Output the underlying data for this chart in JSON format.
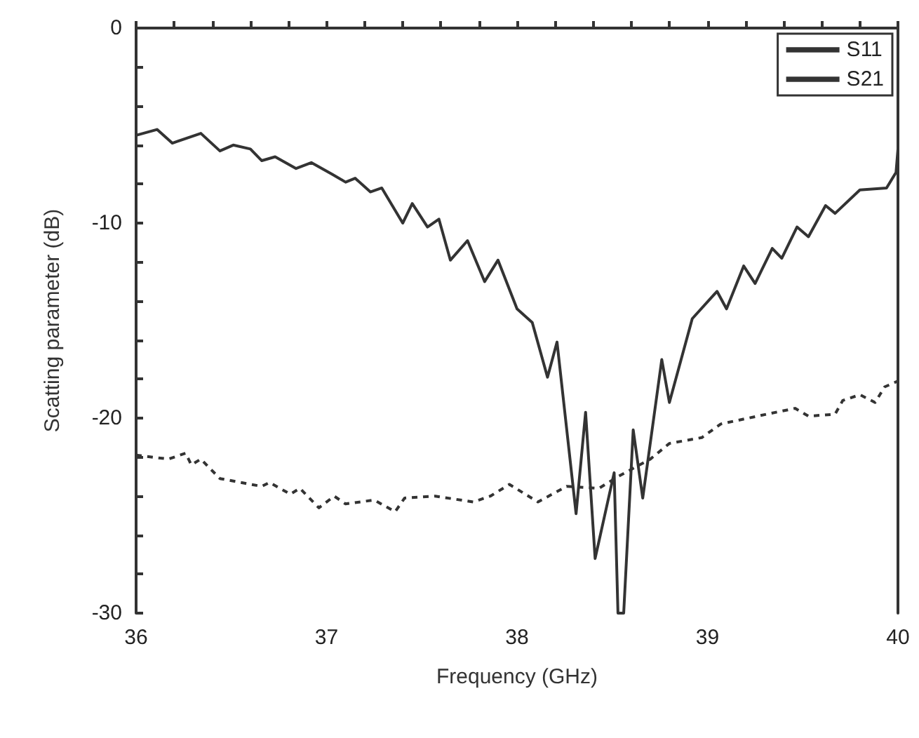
{
  "chart_data": {
    "type": "line",
    "xlabel": "Frequency (GHz)",
    "ylabel": "Scatting parameter (dB)",
    "xlim": [
      36,
      40
    ],
    "ylim": [
      -30,
      0
    ],
    "xticks": [
      36,
      {
        "value": 36.2,
        "label": null
      },
      {
        "value": 36.4,
        "label": null
      },
      {
        "value": 36.6,
        "label": null
      },
      {
        "value": 36.8,
        "label": null
      },
      37,
      {
        "value": 37.2,
        "label": null
      },
      {
        "value": 37.4,
        "label": null
      },
      {
        "value": 37.6,
        "label": null
      },
      {
        "value": 37.8,
        "label": null
      },
      38,
      {
        "value": 38.2,
        "label": null
      },
      {
        "value": 38.4,
        "label": null
      },
      {
        "value": 38.6,
        "label": null
      },
      {
        "value": 38.8,
        "label": null
      },
      39,
      {
        "value": 39.2,
        "label": null
      },
      {
        "value": 39.4,
        "label": null
      },
      {
        "value": 39.6,
        "label": null
      },
      {
        "value": 39.8,
        "label": null
      },
      40
    ],
    "yticks": [
      -30,
      {
        "value": -28,
        "label": null
      },
      {
        "value": -26,
        "label": null
      },
      {
        "value": -24,
        "label": null
      },
      {
        "value": -22,
        "label": null
      },
      -20,
      {
        "value": -18,
        "label": null
      },
      {
        "value": -16,
        "label": null
      },
      {
        "value": -14,
        "label": null
      },
      {
        "value": -12,
        "label": null
      },
      -10,
      {
        "value": -8,
        "label": null
      },
      {
        "value": -6,
        "label": null
      },
      {
        "value": -4,
        "label": null
      },
      {
        "value": -2,
        "label": null
      },
      0
    ],
    "grid": false,
    "legend": "top right",
    "marker": "none",
    "series": [
      {
        "name": "S11",
        "color": "#333333",
        "line_style": "solid",
        "x": [
          36,
          36.11,
          36.19,
          36.34,
          36.44,
          36.51,
          36.6,
          36.66,
          36.73,
          36.84,
          36.92,
          37.03,
          37.1,
          37.15,
          37.23,
          37.29,
          37.4,
          37.45,
          37.53,
          37.59,
          37.65,
          37.74,
          37.83,
          37.9,
          38.0,
          38.08,
          38.16,
          38.21,
          38.31,
          38.36,
          38.41,
          38.51,
          38.53,
          38.56,
          38.61,
          38.66,
          38.76,
          38.8,
          38.92,
          39.05,
          39.1,
          39.19,
          39.25,
          39.34,
          39.39,
          39.47,
          39.53,
          39.62,
          39.67,
          39.8,
          39.94,
          39.99,
          40
        ],
        "values": [
          -5.5,
          -5.2,
          -5.9,
          -5.4,
          -6.3,
          -6.0,
          -6.2,
          -6.8,
          -6.6,
          -7.2,
          -6.9,
          -7.5,
          -7.9,
          -7.7,
          -8.4,
          -8.2,
          -10.0,
          -9.0,
          -10.2,
          -9.8,
          -11.9,
          -10.9,
          -13.0,
          -11.9,
          -14.4,
          -15.1,
          -17.9,
          -16.1,
          -24.9,
          -19.7,
          -27.2,
          -22.8,
          -30,
          -30,
          -20.6,
          -24.1,
          -17.0,
          -19.2,
          -14.9,
          -13.5,
          -14.4,
          -12.2,
          -13.1,
          -11.3,
          -11.8,
          -10.2,
          -10.7,
          -9.1,
          -9.5,
          -8.3,
          -8.2,
          -7.4,
          -6.2
        ]
      },
      {
        "name": "S21",
        "color": "#333333",
        "line_style": "dashed",
        "x": [
          36,
          36.17,
          36.26,
          36.29,
          36.34,
          36.44,
          36.66,
          36.7,
          36.81,
          36.86,
          36.96,
          37.04,
          37.1,
          37.25,
          37.36,
          37.41,
          37.57,
          37.77,
          37.86,
          37.96,
          38.11,
          38.26,
          38.43,
          38.53,
          38.7,
          38.8,
          38.97,
          39.07,
          39.31,
          39.46,
          39.53,
          39.67,
          39.71,
          39.8,
          39.88,
          39.93,
          40
        ],
        "values": [
          -21.9,
          -22.1,
          -21.8,
          -22.4,
          -22.1,
          -23.1,
          -23.5,
          -23.3,
          -23.9,
          -23.6,
          -24.6,
          -24.0,
          -24.4,
          -24.2,
          -24.8,
          -24.1,
          -24.0,
          -24.3,
          -24.0,
          -23.4,
          -24.3,
          -23.5,
          -23.6,
          -23.0,
          -22.1,
          -21.3,
          -21.0,
          -20.3,
          -19.8,
          -19.5,
          -19.9,
          -19.8,
          -19.1,
          -18.8,
          -19.2,
          -18.4,
          -18.1
        ]
      }
    ]
  }
}
